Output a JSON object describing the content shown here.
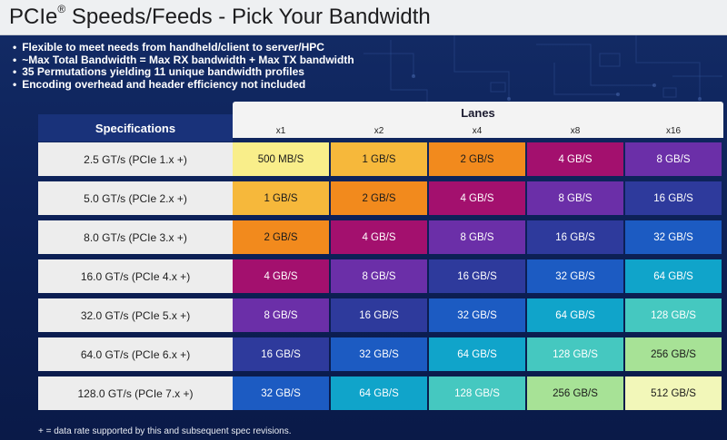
{
  "title": {
    "main": "PCIe",
    "reg": "®",
    "rest": " Speeds/Feeds - Pick Your Bandwidth"
  },
  "bullets": [
    "Flexible to meet needs from handheld/client to server/HPC",
    "~Max Total Bandwidth = Max RX bandwidth + Max TX bandwidth",
    "35 Permutations yielding 11 unique bandwidth profiles",
    "Encoding overhead and header efficiency not included"
  ],
  "table": {
    "spec_header": "Specifications",
    "lanes_header": "Lanes",
    "lanes": [
      "x1",
      "x2",
      "x4",
      "x8",
      "x16"
    ],
    "rows": [
      {
        "spec": "2.5 GT/s (PCIe 1.x +)",
        "values": [
          "500 MB/S",
          "1 GB/S",
          "2 GB/S",
          "4 GB/S",
          "8 GB/S"
        ]
      },
      {
        "spec": "5.0 GT/s (PCIe 2.x +)",
        "values": [
          "1 GB/S",
          "2 GB/S",
          "4 GB/S",
          "8 GB/S",
          "16 GB/S"
        ]
      },
      {
        "spec": "8.0 GT/s (PCIe 3.x +)",
        "values": [
          "2 GB/S",
          "4 GB/S",
          "8 GB/S",
          "16 GB/S",
          "32 GB/S"
        ]
      },
      {
        "spec": "16.0 GT/s (PCIe 4.x +)",
        "values": [
          "4 GB/S",
          "8 GB/S",
          "16 GB/S",
          "32 GB/S",
          "64 GB/S"
        ]
      },
      {
        "spec": "32.0 GT/s (PCIe 5.x +)",
        "values": [
          "8 GB/S",
          "16 GB/S",
          "32 GB/S",
          "64 GB/S",
          "128 GB/S"
        ]
      },
      {
        "spec": "64.0 GT/s (PCIe 6.x +)",
        "values": [
          "16 GB/S",
          "32 GB/S",
          "64 GB/S",
          "128 GB/S",
          "256 GB/S"
        ]
      },
      {
        "spec": "128.0 GT/s (PCIe 7.x +)",
        "values": [
          "32 GB/S",
          "64 GB/S",
          "128 GB/S",
          "256 GB/S",
          "512 GB/S"
        ]
      }
    ]
  },
  "bandwidth_colors": {
    "500 MB/S": "#f9ee8a",
    "1 GB/S": "#f6b83b",
    "2 GB/S": "#f28a1d",
    "4 GB/S": "#a3106e",
    "8 GB/S": "#6b2fa8",
    "16 GB/S": "#2e3a9c",
    "32 GB/S": "#1c5bc2",
    "64 GB/S": "#10a4ca",
    "128 GB/S": "#45c8c0",
    "256 GB/S": "#a7e296",
    "512 GB/S": "#f2f7b9"
  },
  "footnote": "+ = data rate supported by this and subsequent spec revisions."
}
